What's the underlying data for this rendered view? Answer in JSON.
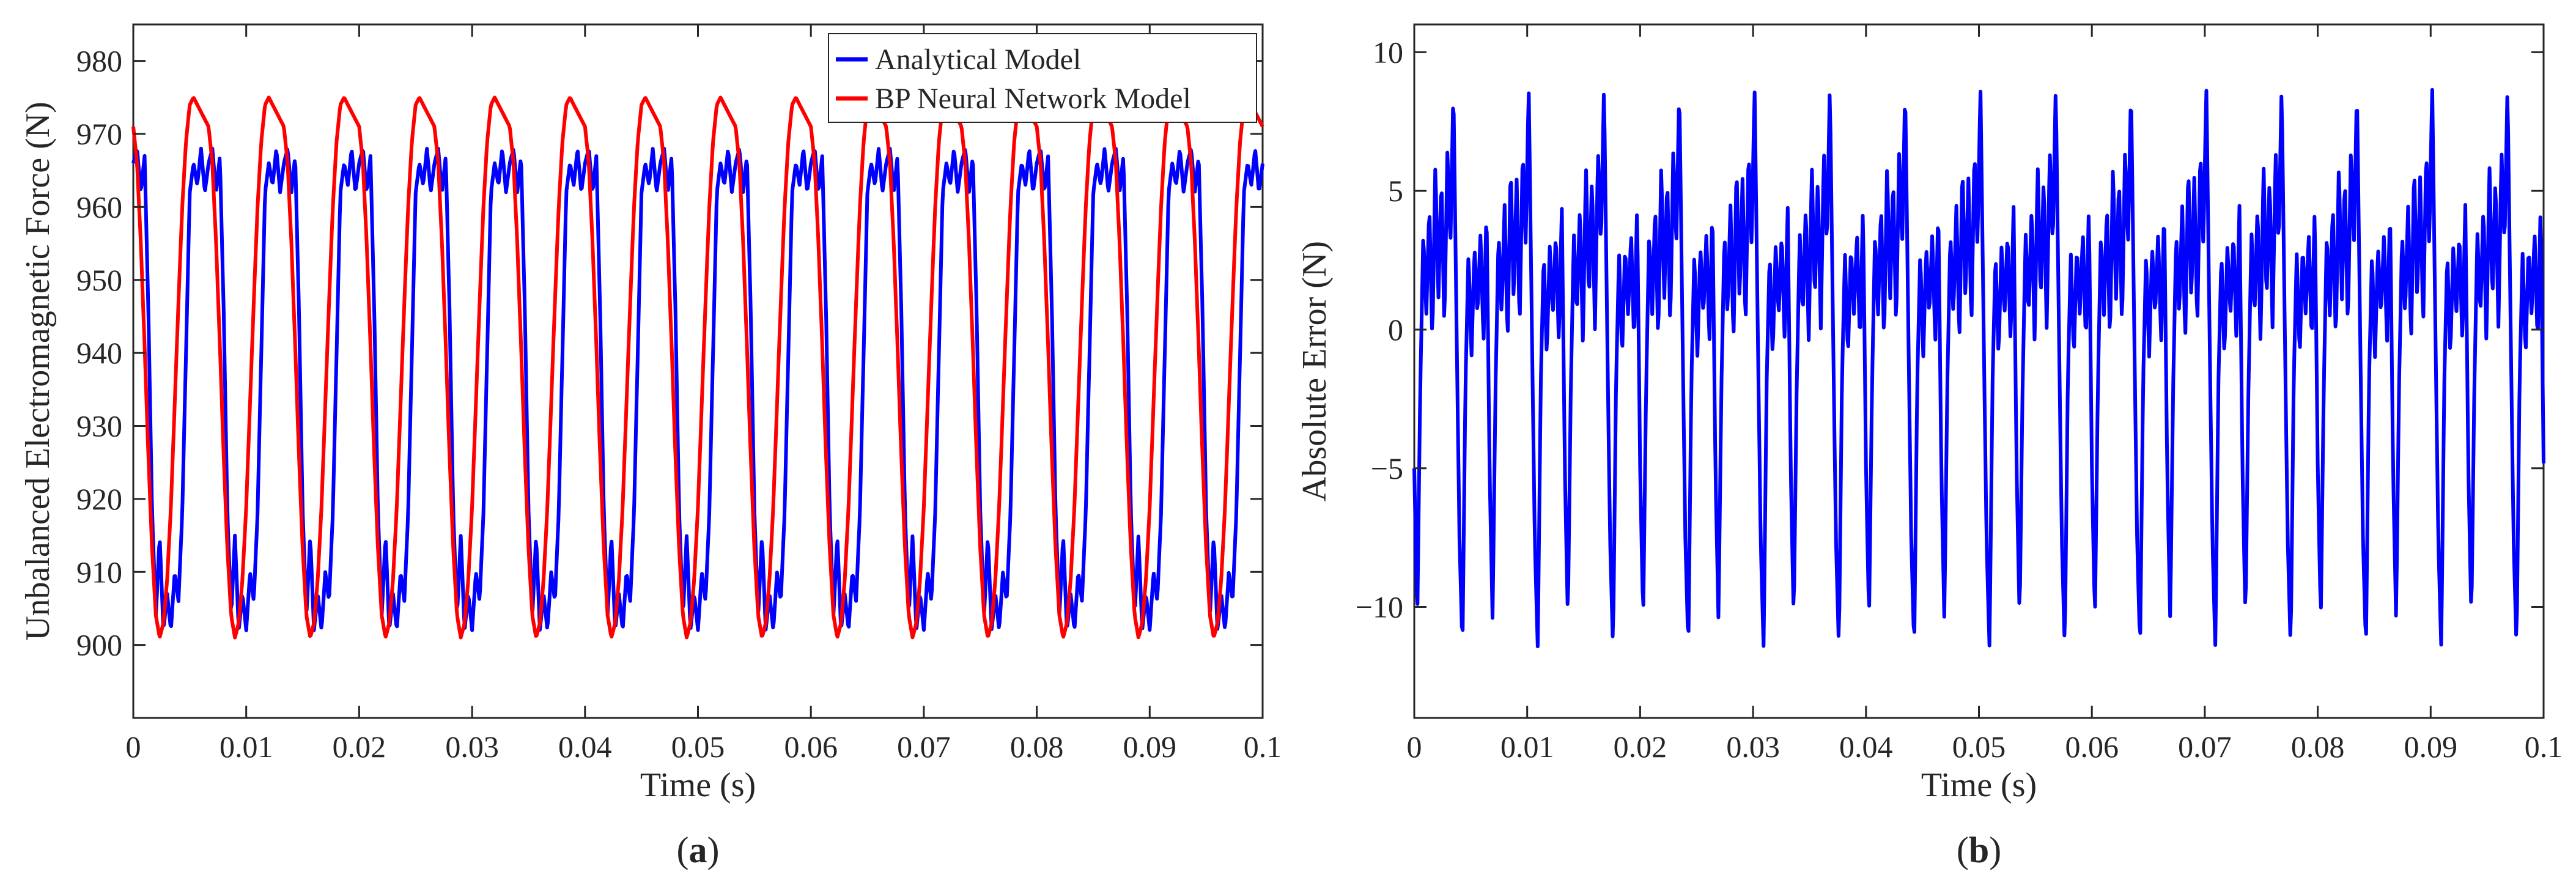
{
  "chart_data": [
    {
      "panel_label": "(a)",
      "panel_letter": "a",
      "type": "line",
      "title": "",
      "xlabel": "Time (s)",
      "ylabel": "Unbalanced Electromagnetic Force (N)",
      "xlim": [
        0,
        0.1
      ],
      "ylim": [
        890,
        985
      ],
      "xticks": [
        0,
        0.01,
        0.02,
        0.03,
        0.04,
        0.05,
        0.06,
        0.07,
        0.08,
        0.09,
        0.1
      ],
      "xtick_labels": [
        "0",
        "0.01",
        "0.02",
        "0.03",
        "0.04",
        "0.05",
        "0.06",
        "0.07",
        "0.08",
        "0.09",
        "0.1"
      ],
      "yticks": [
        900,
        910,
        920,
        930,
        940,
        950,
        960,
        970,
        980
      ],
      "ytick_labels": [
        "900",
        "910",
        "920",
        "930",
        "940",
        "950",
        "960",
        "970",
        "980"
      ],
      "grid": false,
      "legend": {
        "position": "top-right",
        "entries": [
          "Analytical Model",
          "BP Neural Network Model"
        ]
      },
      "period_s": 0.006667,
      "series": [
        {
          "name": "Analytical Model",
          "color": "#0000ff",
          "description": "periodic wave, peaks ~968 with small ripple, troughs ~902",
          "one_period": {
            "phase": [
              0,
              0.05,
              0.1,
              0.15,
              0.2,
              0.25,
              0.3,
              0.35,
              0.4,
              0.45,
              0.5,
              0.55,
              0.6,
              0.65,
              0.7,
              0.75,
              0.8,
              0.85,
              0.9,
              0.95,
              1.0
            ],
            "values": [
              966,
              968,
              962,
              967,
              946,
              918,
              904,
              915,
              902,
              907,
              902,
              910,
              906,
              918,
              940,
              962,
              966,
              963,
              968,
              962,
              966
            ]
          }
        },
        {
          "name": "BP Neural Network Model",
          "color": "#ff0000",
          "description": "smooth sinusoid, peaks ~974-975, troughs ~901",
          "one_period": {
            "phase": [
              0,
              0.05,
              0.1,
              0.15,
              0.2,
              0.25,
              0.3,
              0.35,
              0.4,
              0.45,
              0.5,
              0.55,
              0.6,
              0.65,
              0.7,
              0.75,
              0.8,
              0.85,
              0.9,
              0.95,
              1.0
            ],
            "values": [
              971,
              966,
              955,
              941,
              926,
              913,
              904,
              901,
              903,
              909,
              919,
              933,
              947,
              960,
              969,
              974,
              975,
              974,
              973,
              972,
              971
            ]
          }
        }
      ]
    },
    {
      "panel_label": "(b)",
      "panel_letter": "b",
      "type": "line",
      "title": "",
      "xlabel": "Time (s)",
      "ylabel": "Absolute Error (N)",
      "xlim": [
        0,
        0.1
      ],
      "ylim": [
        -14,
        11
      ],
      "xticks": [
        0,
        0.01,
        0.02,
        0.03,
        0.04,
        0.05,
        0.06,
        0.07,
        0.08,
        0.09,
        0.1
      ],
      "xtick_labels": [
        "0",
        "0.01",
        "0.02",
        "0.03",
        "0.04",
        "0.05",
        "0.06",
        "0.07",
        "0.08",
        "0.09",
        "0.1"
      ],
      "yticks": [
        -10,
        -5,
        0,
        5,
        10
      ],
      "ytick_labels": [
        "−10",
        "−5",
        "0",
        "5",
        "10"
      ],
      "grid": false,
      "period_s": 0.006667,
      "series": [
        {
          "name": "Absolute Error",
          "color": "#0000ff",
          "description": "oscillating error between about -11.5 and 8.8 N",
          "one_period": {
            "phase": [
              0,
              0.04,
              0.08,
              0.12,
              0.16,
              0.2,
              0.24,
              0.28,
              0.32,
              0.36,
              0.4,
              0.44,
              0.48,
              0.52,
              0.56,
              0.6,
              0.64,
              0.68,
              0.72,
              0.76,
              0.8,
              0.84,
              0.88,
              0.92,
              0.96,
              1.0
            ],
            "values": [
              -5,
              -10.5,
              -2,
              3.5,
              0.5,
              4.5,
              -0.5,
              6,
              1,
              5.5,
              0,
              6.5,
              3,
              8.8,
              0.5,
              -7.5,
              -11.5,
              -2,
              2.8,
              -1,
              3,
              0.5,
              3.5,
              -0.5,
              4.5,
              -5
            ]
          }
        }
      ]
    }
  ]
}
